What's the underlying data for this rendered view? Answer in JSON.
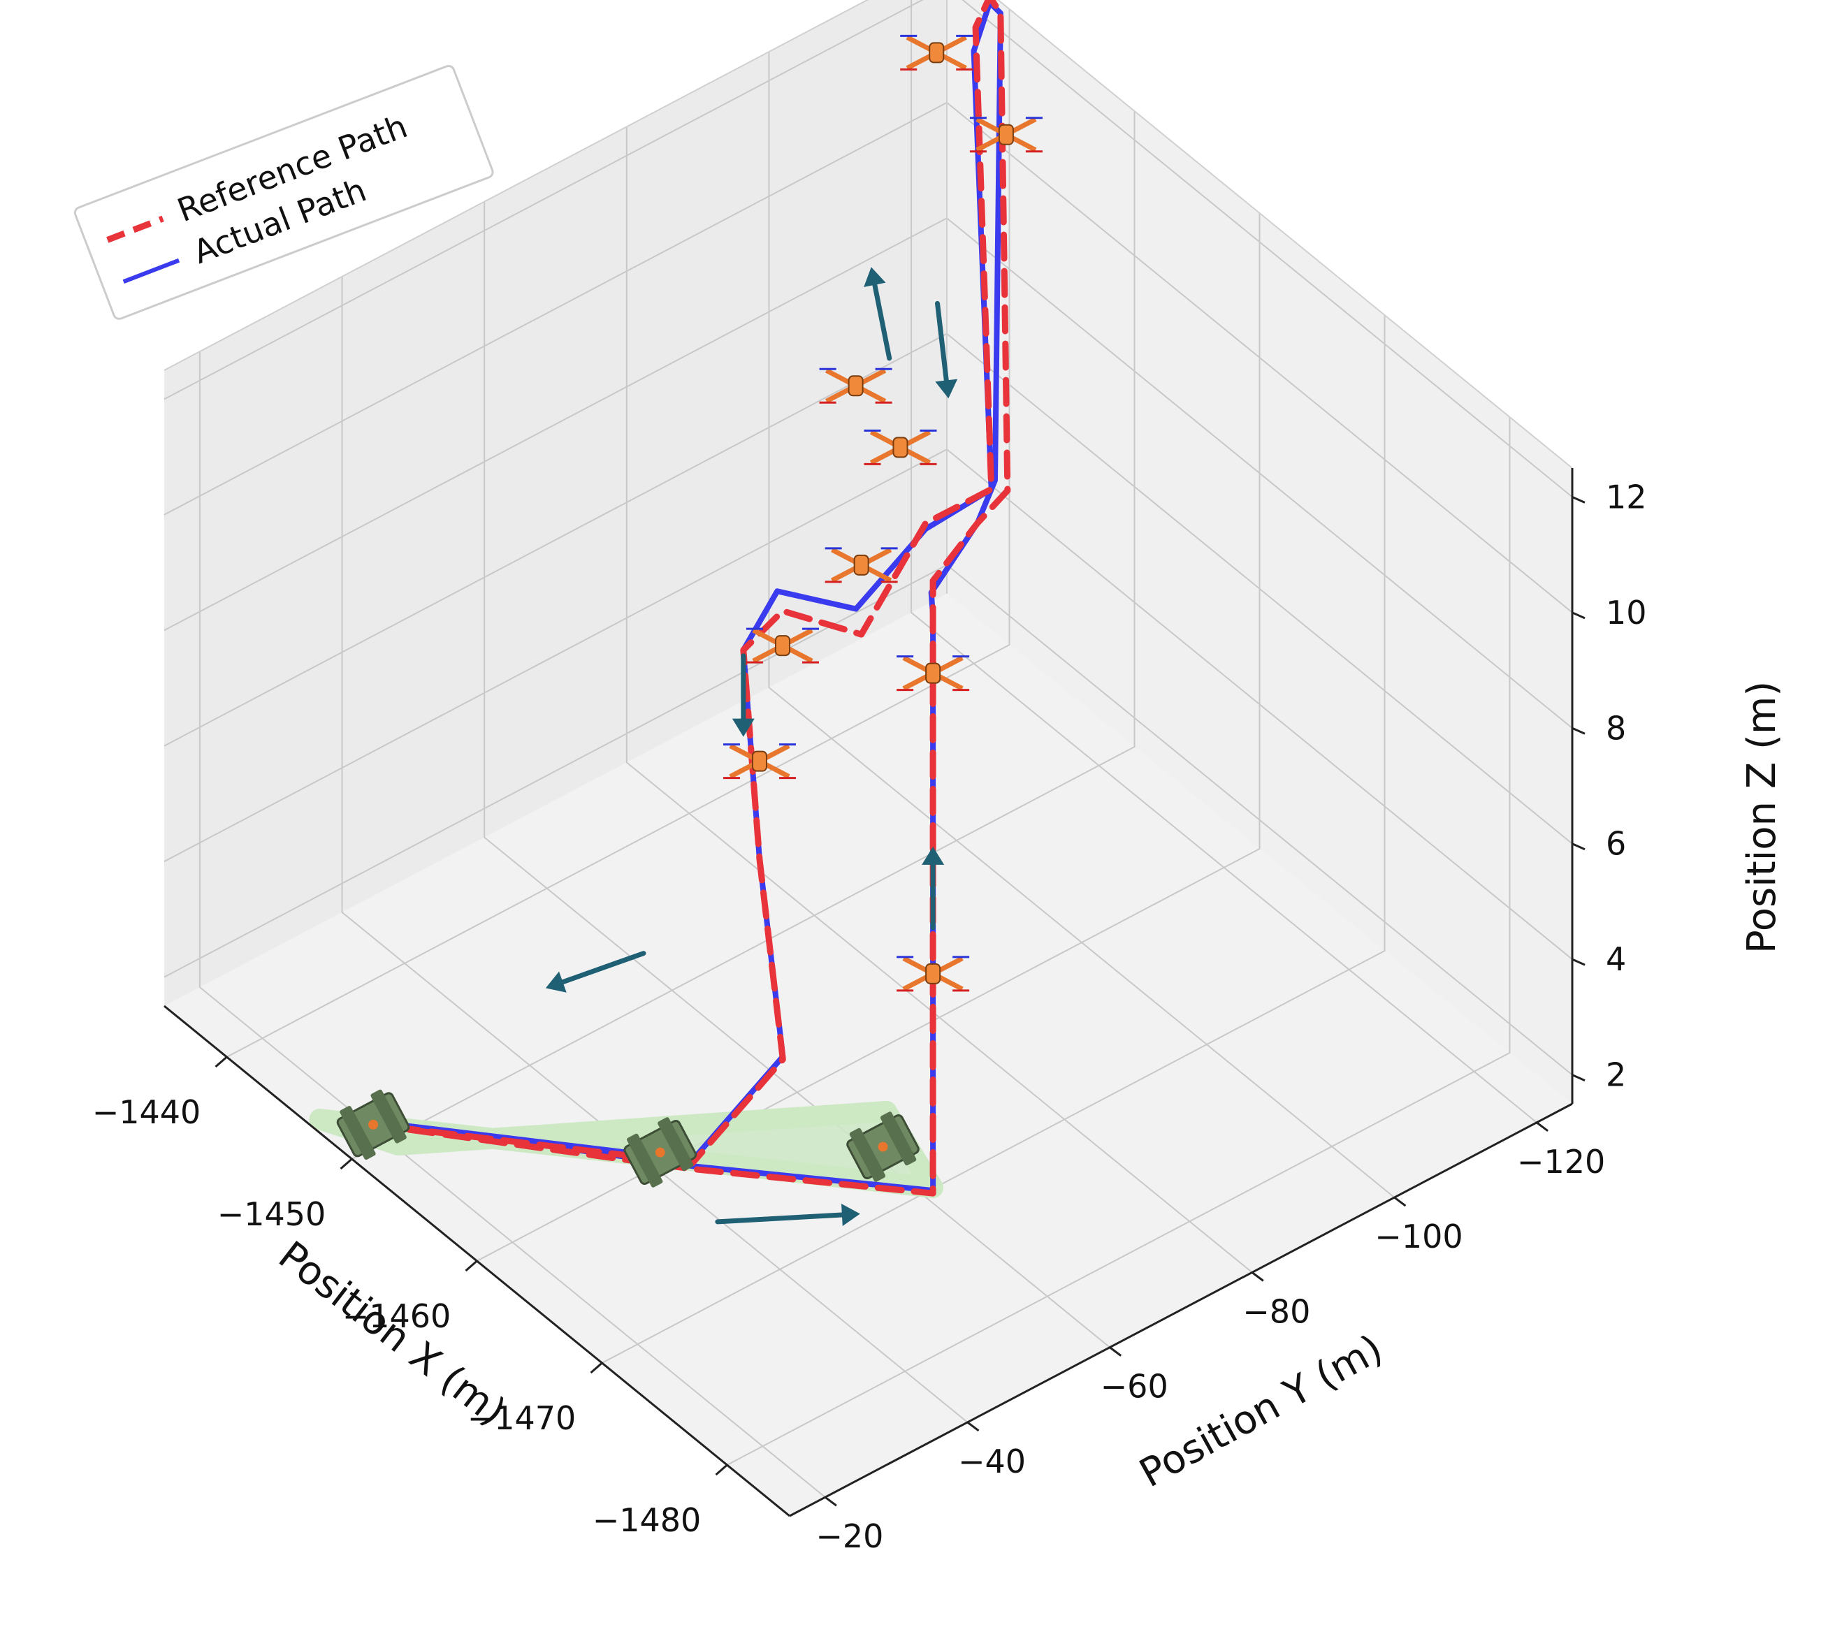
{
  "chart_data": {
    "type": "line",
    "projection": "3d",
    "title": "",
    "axes": {
      "x": {
        "label": "Position X (m)",
        "range": [
          -1485,
          -1435
        ],
        "ticks": [
          -1440,
          -1450,
          -1460,
          -1470,
          -1480
        ],
        "tick_labels": [
          "−1440",
          "−1450",
          "−1460",
          "−1470",
          "−1480"
        ]
      },
      "y": {
        "label": "Position Y (m)",
        "range": [
          -15,
          -125
        ],
        "ticks": [
          -20,
          -40,
          -60,
          -80,
          -100,
          -120
        ],
        "tick_labels": [
          "−20",
          "−40",
          "−60",
          "−80",
          "−100",
          "−120"
        ]
      },
      "z": {
        "label": "Position Z (m)",
        "range": [
          1.5,
          12.5
        ],
        "ticks": [
          2,
          4,
          6,
          8,
          10,
          12
        ],
        "tick_labels": [
          "2",
          "4",
          "6",
          "8",
          "10",
          "12"
        ]
      }
    },
    "grid": true,
    "legend": {
      "placement": "top-left",
      "entries": [
        "Reference Path",
        "Actual Path"
      ]
    },
    "series": [
      {
        "name": "Reference Path",
        "style": "dashed",
        "color": "#e8333a",
        "points": [
          [
            -1450,
            -18,
            1.9
          ],
          [
            -1463,
            -40,
            2.0
          ],
          [
            -1472,
            -58,
            2.0
          ],
          [
            -1472,
            -58,
            6.0
          ],
          [
            -1472,
            -58,
            9.0
          ],
          [
            -1472,
            -58,
            12.0
          ],
          [
            -1472,
            -58,
            12.6
          ],
          [
            -1471,
            -66,
            12.9
          ],
          [
            -1470,
            -72,
            12.9
          ],
          [
            -1441,
            -122,
            12.8
          ],
          [
            -1439,
            -124,
            12.6
          ],
          [
            -1439,
            -122,
            12.2
          ],
          [
            -1467,
            -75,
            12.2
          ],
          [
            -1468,
            -64,
            12.5
          ],
          [
            -1464,
            -62,
            10.0
          ],
          [
            -1456,
            -65,
            8.8
          ],
          [
            -1454,
            -63,
            7.9
          ],
          [
            -1457,
            -60,
            5.0
          ],
          [
            -1460,
            -58,
            2.2
          ],
          [
            -1463,
            -40,
            2.1
          ],
          [
            -1450,
            -18,
            1.9
          ]
        ]
      },
      {
        "name": "Actual Path",
        "style": "solid",
        "color": "#3a3aee",
        "points": [
          [
            -1450,
            -18,
            1.95
          ],
          [
            -1463,
            -40,
            2.05
          ],
          [
            -1472,
            -58,
            2.05
          ],
          [
            -1472,
            -58,
            6.0
          ],
          [
            -1472,
            -58,
            9.0
          ],
          [
            -1472,
            -58,
            12.0
          ],
          [
            -1473,
            -56,
            12.7
          ],
          [
            -1471,
            -66,
            12.9
          ],
          [
            -1469,
            -72,
            12.9
          ],
          [
            -1441,
            -122,
            12.8
          ],
          [
            -1439,
            -124,
            12.5
          ],
          [
            -1440,
            -120,
            12.1
          ],
          [
            -1467,
            -75,
            12.2
          ],
          [
            -1468,
            -64,
            12.4
          ],
          [
            -1463,
            -63,
            10.2
          ],
          [
            -1455,
            -66,
            8.9
          ],
          [
            -1454,
            -63,
            7.9
          ],
          [
            -1457,
            -60,
            5.0
          ],
          [
            -1460,
            -58,
            2.25
          ],
          [
            -1463,
            -40,
            2.15
          ],
          [
            -1450,
            -18,
            1.95
          ]
        ]
      }
    ],
    "markers": {
      "drone": [
        [
          -1472,
          -58,
          11.0
        ],
        [
          -1472,
          -58,
          5.8
        ],
        [
          -1459,
          -70,
          12.9
        ],
        [
          -1462,
          -71,
          12.3
        ],
        [
          -1441,
          -113,
          12.7
        ],
        [
          -1446,
          -114,
          12.1
        ],
        [
          -1464,
          -62,
          11.2
        ],
        [
          -1456,
          -65,
          8.2
        ],
        [
          -1457,
          -60,
          6.7
        ]
      ],
      "rover": [
        [
          -1450,
          -18,
          1.9
        ],
        [
          -1461,
          -39,
          2.0
        ],
        [
          -1468,
          -58,
          2.1
        ]
      ]
    },
    "direction_arrows": [
      {
        "from": [
          -1469,
          -33,
          2.6
        ],
        "to": [
          -1473,
          -46,
          2.6
        ]
      },
      {
        "from": [
          -1450,
          -56,
          2.4
        ],
        "to": [
          -1449,
          -44,
          2.4
        ]
      },
      {
        "from": [
          -1472,
          -58,
          6.6
        ],
        "to": [
          -1472,
          -58,
          8.0
        ]
      },
      {
        "from": [
          -1454,
          -63,
          7.8
        ],
        "to": [
          -1454,
          -63,
          6.4
        ]
      },
      {
        "from": [
          -1456,
          -80,
          12.2
        ],
        "to": [
          -1450,
          -88,
          12.2
        ]
      },
      {
        "from": [
          -1457,
          -85,
          13.0
        ],
        "to": [
          -1463,
          -76,
          13.0
        ]
      }
    ],
    "ground_region": {
      "label": "",
      "corners": [
        [
          -1448,
          -14,
          1.9
        ],
        [
          -1452,
          -18,
          1.9
        ],
        [
          -1466,
          -62,
          2.1
        ],
        [
          -1472,
          -58,
          2.1
        ]
      ]
    }
  }
}
